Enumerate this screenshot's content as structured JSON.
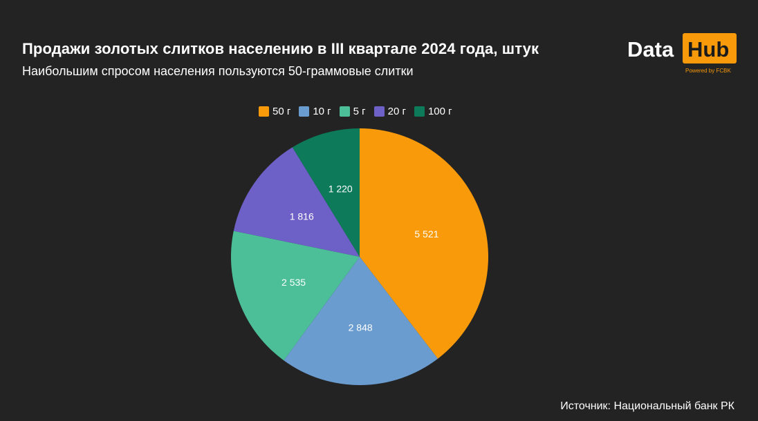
{
  "header": {
    "title": "Продажи золотых слитков населению в III квартале 2024 года, штук",
    "subtitle": "Наибольшим спросом населения пользуются 50-граммовые слитки"
  },
  "logo": {
    "word1": "Data",
    "word2": "Hub",
    "powered": "Powered by FCBK"
  },
  "footer": {
    "source": "Источник: Национальный банк РК"
  },
  "colors": {
    "background": "#232323",
    "accent": "#f99a0a"
  },
  "chart_data": {
    "type": "pie",
    "title": "Продажи золотых слитков населению в III квартале 2024 года, штук",
    "subtitle": "Наибольшим спросом населения пользуются 50-граммовые слитки",
    "legend_position": "top",
    "slices": [
      {
        "label": "50 г",
        "value": 5521,
        "display": "5 521",
        "color": "#f99a0a"
      },
      {
        "label": "10 г",
        "value": 2848,
        "display": "2 848",
        "color": "#6a9ccf"
      },
      {
        "label": "5 г",
        "value": 2535,
        "display": "2 535",
        "color": "#4cbf99"
      },
      {
        "label": "20 г",
        "value": 1816,
        "display": "1 816",
        "color": "#6d60c6"
      },
      {
        "label": "100 г",
        "value": 1220,
        "display": "1 220",
        "color": "#0d7a5a"
      }
    ]
  }
}
